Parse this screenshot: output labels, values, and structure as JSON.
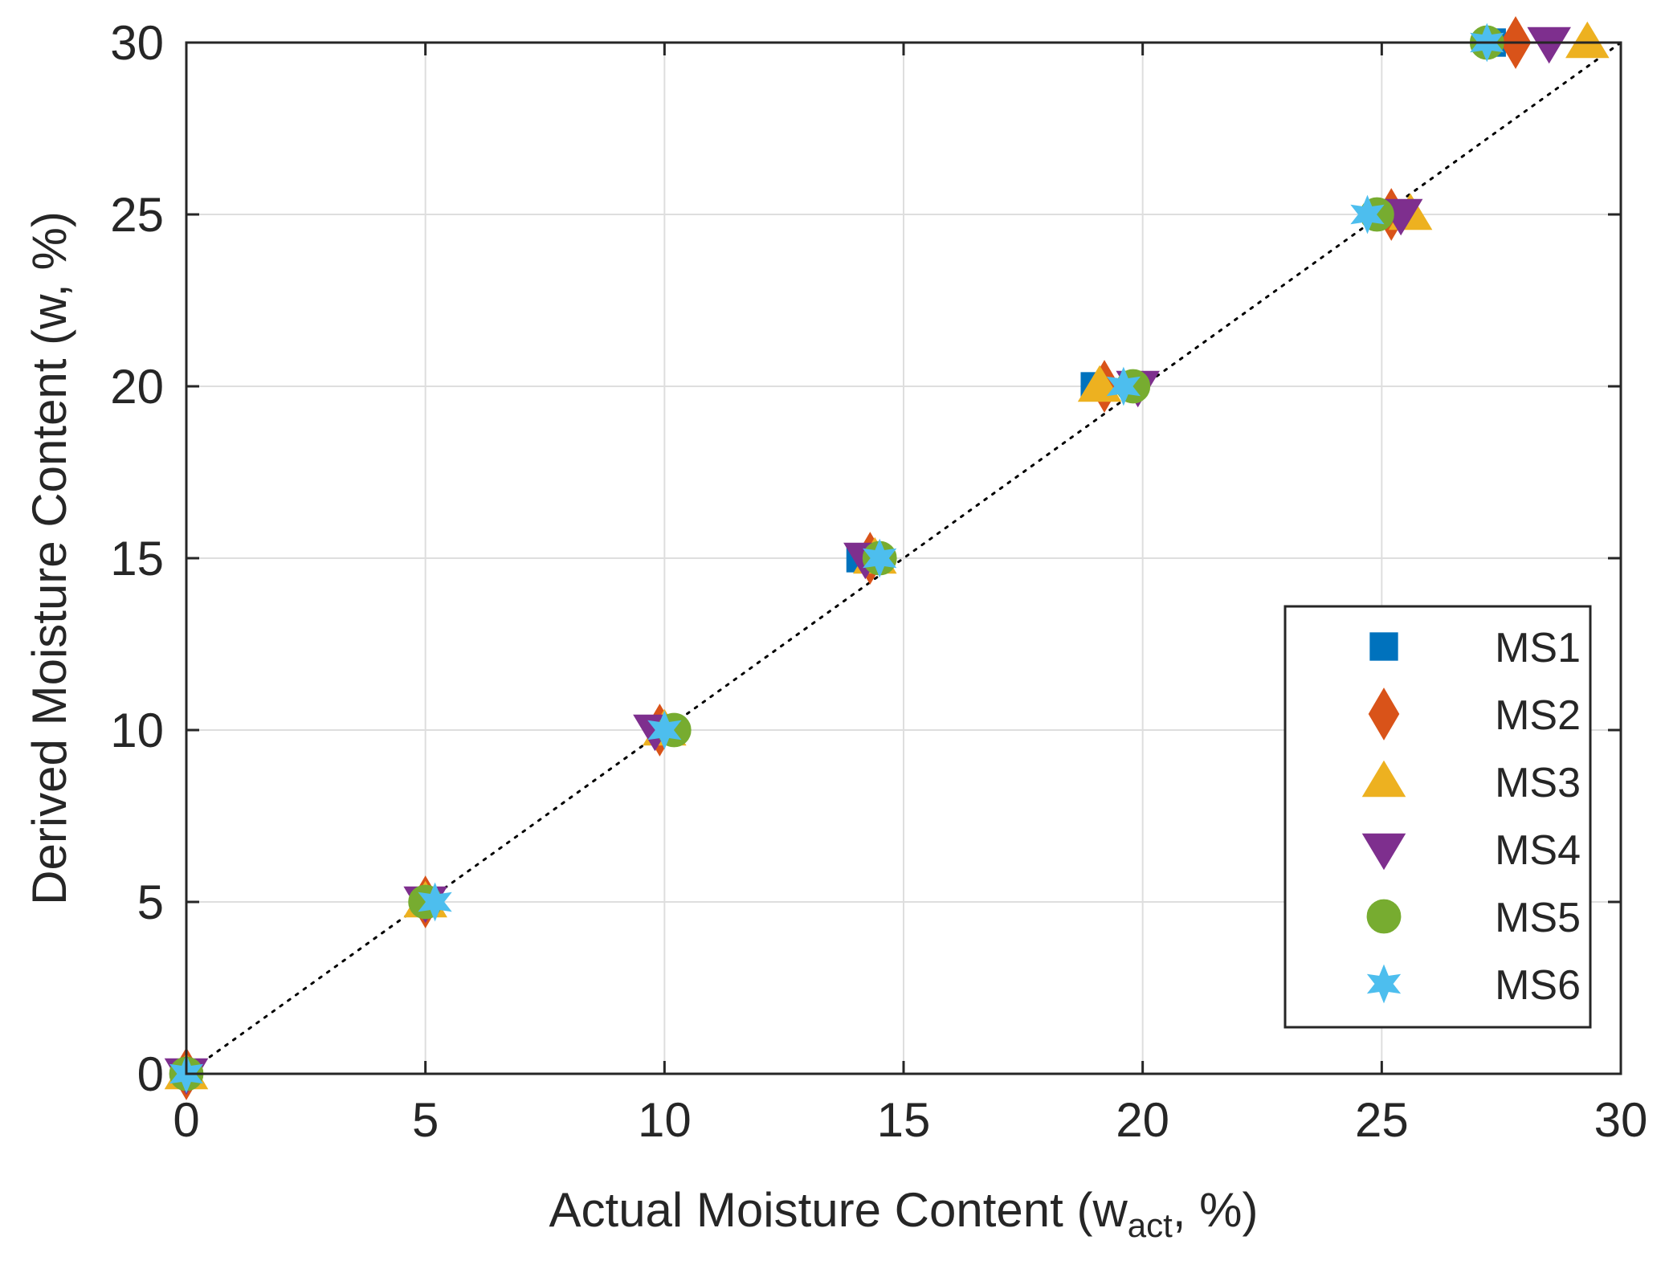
{
  "chart_data": {
    "type": "scatter",
    "xlabel": {
      "main": "Actual Moisture Content (w",
      "sub": "act",
      "tail": ", %)"
    },
    "ylabel": {
      "main": "Derived Moisture Content (w",
      "sub": "",
      "tail": ", %)"
    },
    "xlim": [
      0,
      30
    ],
    "ylim": [
      0,
      30
    ],
    "xticks": [
      "0",
      "5",
      "10",
      "15",
      "20",
      "25",
      "30"
    ],
    "yticks": [
      "0",
      "5",
      "10",
      "15",
      "20",
      "25",
      "30"
    ],
    "grid": true,
    "legend_position": "lower-right",
    "reference_line": {
      "style": "dotted",
      "from": [
        0,
        0
      ],
      "to": [
        30,
        30
      ]
    },
    "series": [
      {
        "name": "MS1",
        "marker": "square",
        "color": "#0072BD",
        "points": [
          [
            0,
            0
          ],
          [
            5,
            5
          ],
          [
            10,
            10
          ],
          [
            14.1,
            15
          ],
          [
            19.0,
            20
          ],
          [
            25.0,
            25
          ],
          [
            27.3,
            30
          ]
        ]
      },
      {
        "name": "MS2",
        "marker": "diamond",
        "color": "#D95319",
        "points": [
          [
            0,
            0
          ],
          [
            5.0,
            5
          ],
          [
            9.9,
            10
          ],
          [
            14.3,
            15
          ],
          [
            19.2,
            20
          ],
          [
            25.2,
            25
          ],
          [
            27.8,
            30
          ]
        ]
      },
      {
        "name": "MS3",
        "marker": "triangle-up",
        "color": "#EDB120",
        "points": [
          [
            0,
            0
          ],
          [
            5.0,
            5
          ],
          [
            10.0,
            10
          ],
          [
            14.4,
            15
          ],
          [
            19.1,
            20
          ],
          [
            25.6,
            25
          ],
          [
            29.3,
            30
          ]
        ]
      },
      {
        "name": "MS4",
        "marker": "triangle-down",
        "color": "#7E2F8E",
        "points": [
          [
            0,
            0
          ],
          [
            5.0,
            5
          ],
          [
            9.8,
            10
          ],
          [
            14.2,
            15
          ],
          [
            19.9,
            20
          ],
          [
            25.4,
            25
          ],
          [
            28.5,
            30
          ]
        ]
      },
      {
        "name": "MS5",
        "marker": "circle",
        "color": "#77AC30",
        "points": [
          [
            0,
            0
          ],
          [
            5.0,
            5
          ],
          [
            10.2,
            10
          ],
          [
            14.5,
            15
          ],
          [
            19.8,
            20
          ],
          [
            24.9,
            25
          ],
          [
            27.2,
            30
          ]
        ]
      },
      {
        "name": "MS6",
        "marker": "star",
        "color": "#4DBEEE",
        "points": [
          [
            0,
            0
          ],
          [
            5.2,
            5
          ],
          [
            10.0,
            10
          ],
          [
            14.5,
            15
          ],
          [
            19.6,
            20
          ],
          [
            24.7,
            25
          ],
          [
            27.2,
            30
          ]
        ]
      }
    ]
  }
}
